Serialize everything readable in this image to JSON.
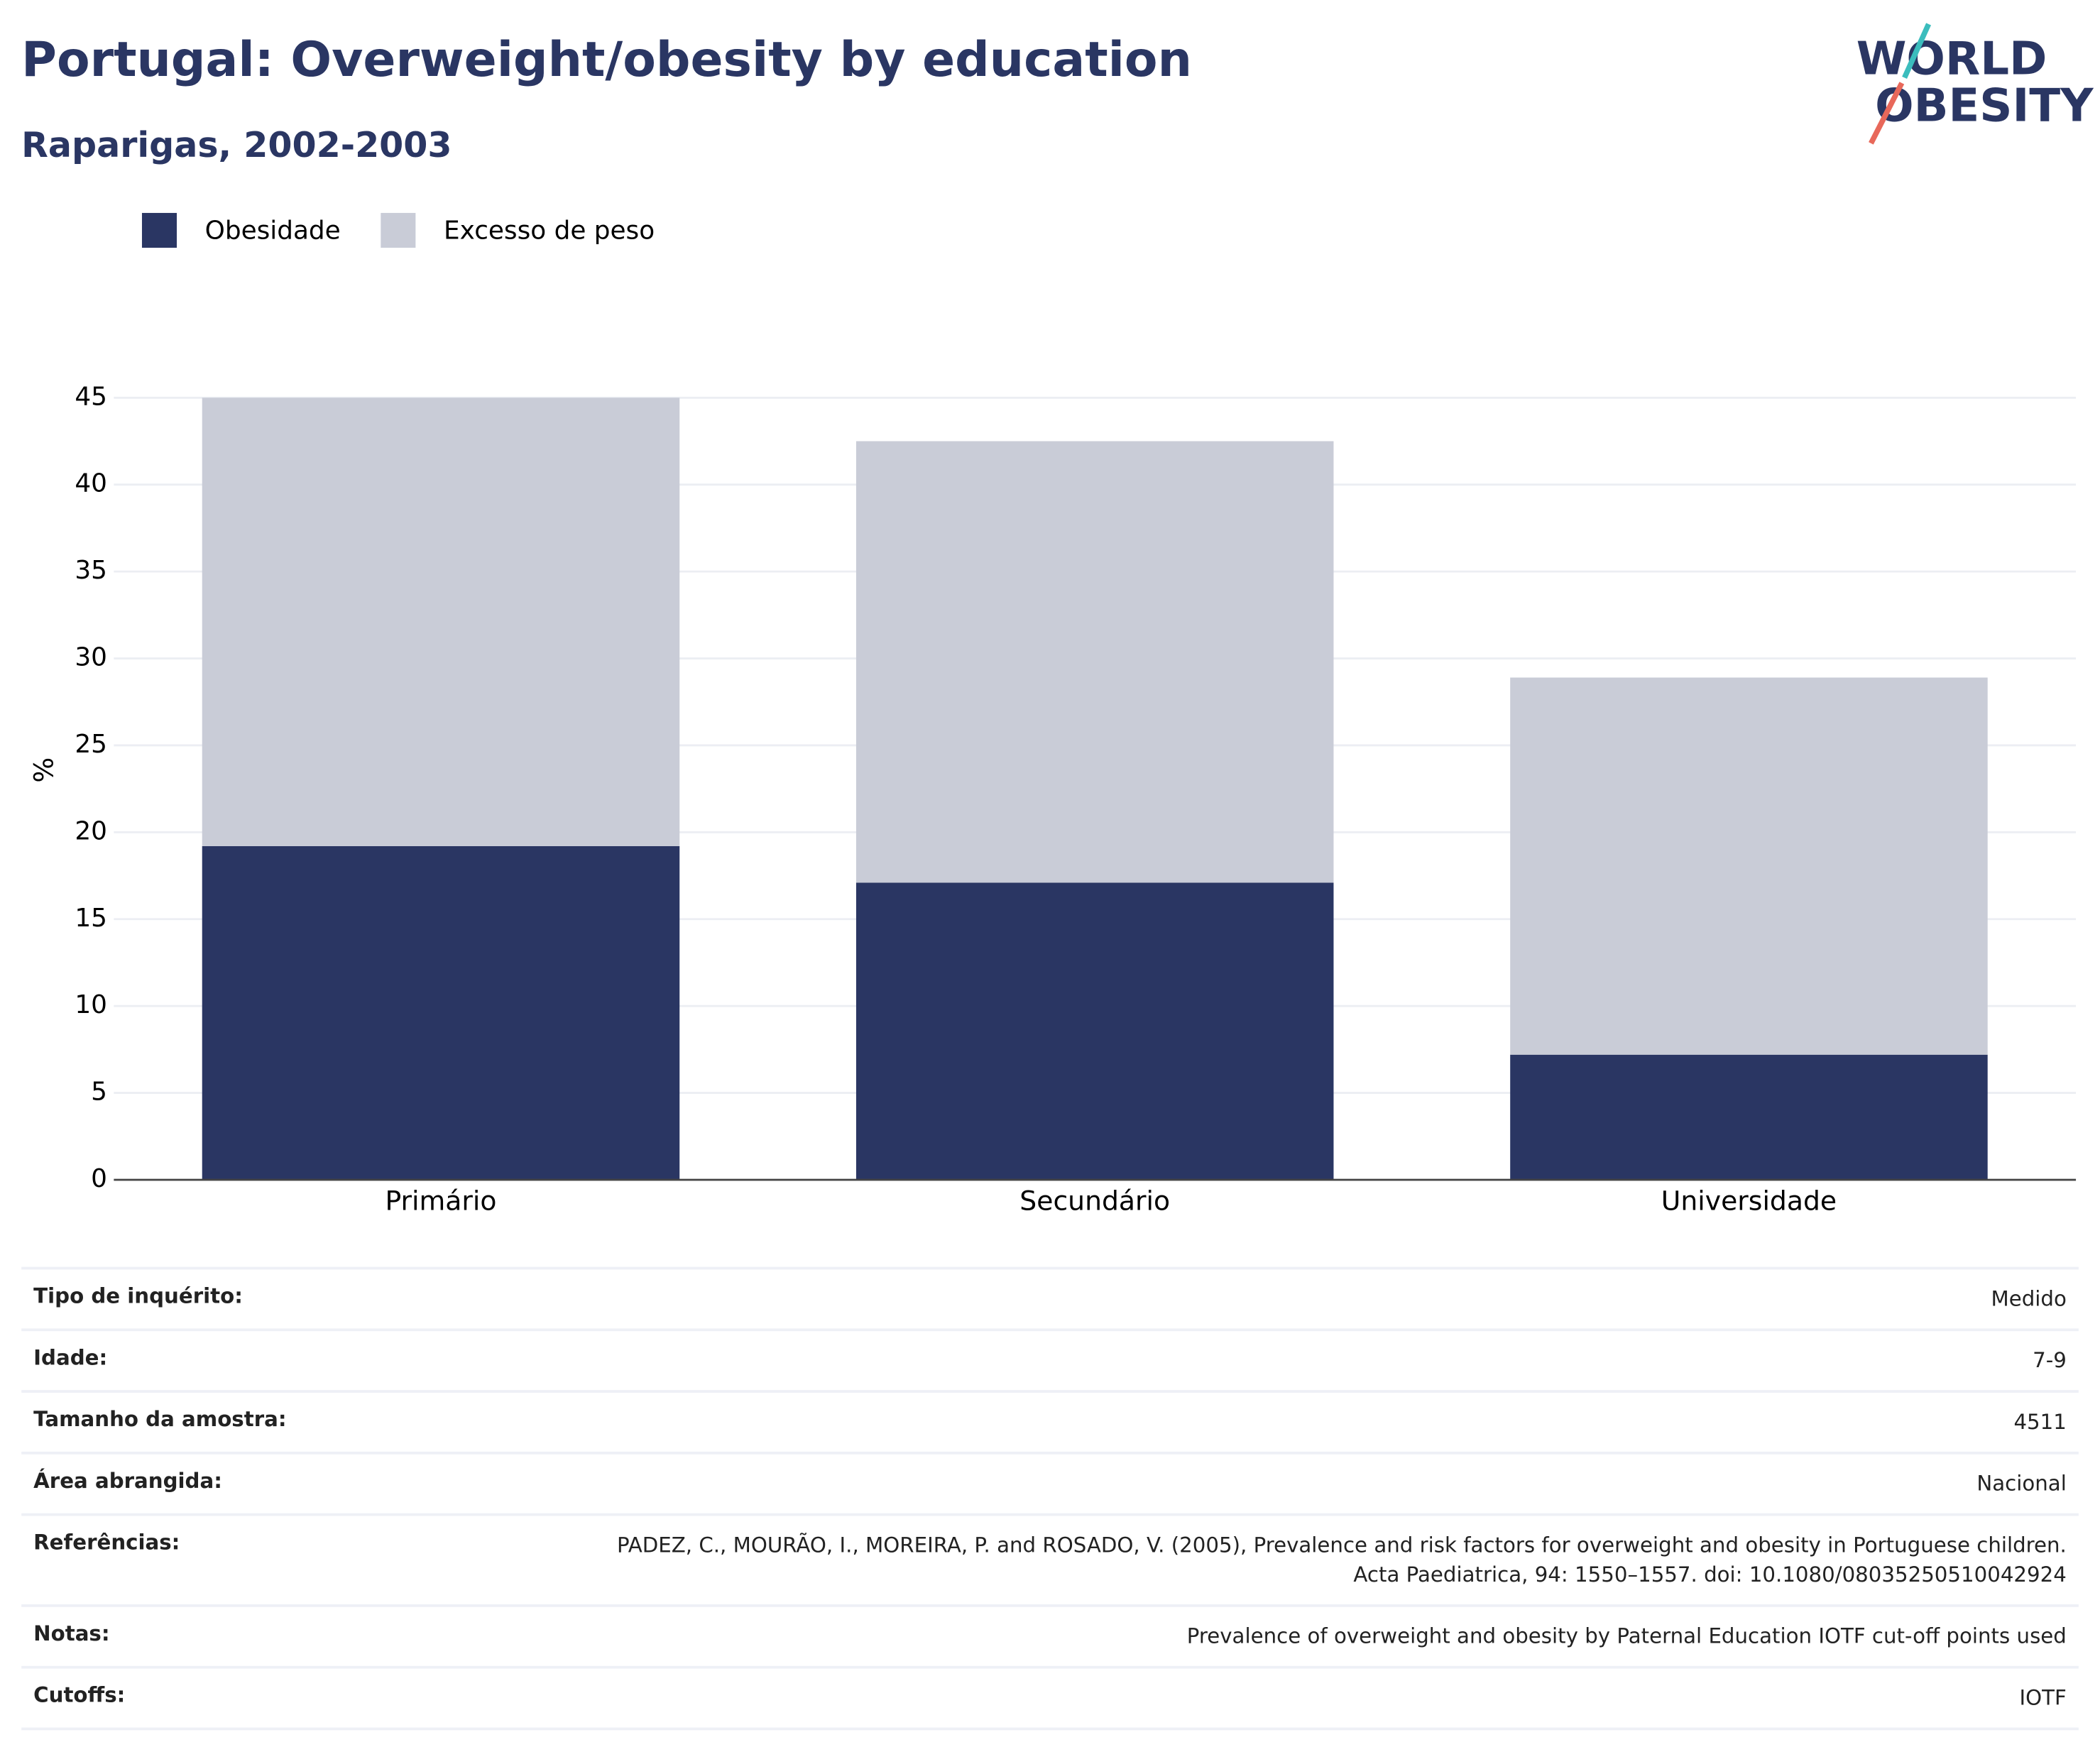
{
  "chart_data": {
    "type": "bar",
    "stacked": true,
    "title": "Portugal: Overweight/obesity by education",
    "subtitle": "Raparigas, 2002-2003",
    "y_label": "%",
    "categories": [
      "Primário",
      "Secundário",
      "Universidade"
    ],
    "series": [
      {
        "name": "Obesidade",
        "color": "#2a3663",
        "values": [
          19.2,
          17.1,
          7.2
        ]
      },
      {
        "name": "Excesso de peso",
        "color": "#c9ccd7",
        "values": [
          25.8,
          25.4,
          21.7
        ]
      }
    ],
    "ylim": [
      0,
      45
    ],
    "yticks": [
      0,
      5,
      10,
      15,
      20,
      25,
      30,
      35,
      40,
      45
    ],
    "grid": true
  },
  "logo": {
    "line1": "WORLD",
    "line2": "OBESITY"
  },
  "table": {
    "rows": [
      [
        "Tipo de inquérito:",
        "Medido"
      ],
      [
        "Idade:",
        "7-9"
      ],
      [
        "Tamanho da amostra:",
        "4511"
      ],
      [
        "Área abrangida:",
        "Nacional"
      ],
      [
        "Referências:",
        "PADEZ, C., MOURÃO, I., MOREIRA, P. and ROSADO, V. (2005), Prevalence and risk factors for overweight and obesity in Portuguese children. Acta Paediatrica, 94: 1550–1557. doi: 10.1080/08035250510042924"
      ],
      [
        "Notas:",
        "Prevalence of overweight and obesity by Paternal Education IOTF cut-off points used"
      ],
      [
        "Cutoffs:",
        "IOTF"
      ]
    ]
  }
}
